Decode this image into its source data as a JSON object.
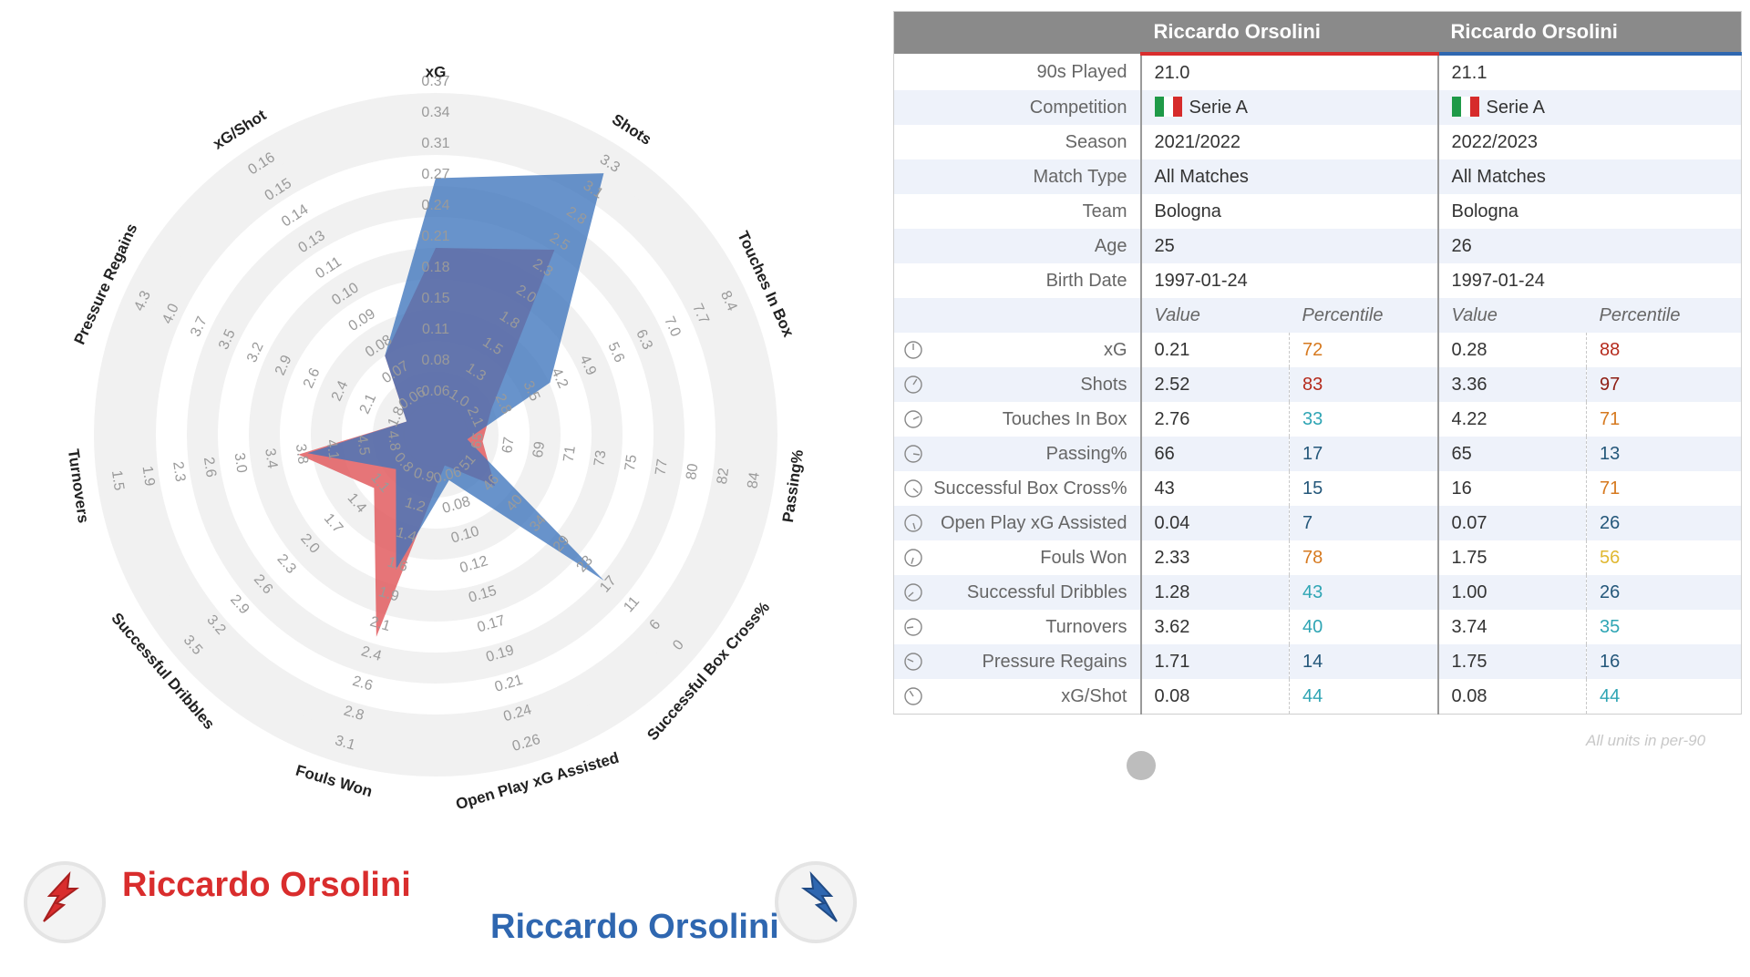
{
  "chart_data": {
    "type": "radar",
    "axes": [
      {
        "name": "xG",
        "ticks": [
          "0.06",
          "0.08",
          "0.11",
          "0.15",
          "0.18",
          "0.21",
          "0.24",
          "0.27",
          "0.31",
          "0.34",
          "0.37"
        ]
      },
      {
        "name": "Shots",
        "ticks": [
          "1.0",
          "1.3",
          "1.5",
          "1.8",
          "2.0",
          "2.3",
          "2.5",
          "2.8",
          "3.1",
          "3.3"
        ]
      },
      {
        "name": "Touches In Box",
        "ticks": [
          "2.1",
          "2.8",
          "3.5",
          "4.2",
          "4.9",
          "5.6",
          "6.3",
          "7.0",
          "7.7",
          "8.4"
        ]
      },
      {
        "name": "Passing%",
        "ticks": [
          "65",
          "67",
          "69",
          "71",
          "73",
          "75",
          "77",
          "80",
          "82",
          "84"
        ]
      },
      {
        "name": "Successful Box Cross%",
        "ticks": [
          "51",
          "46",
          "40",
          "34",
          "29",
          "23",
          "17",
          "11",
          "6",
          "0"
        ]
      },
      {
        "name": "Open Play xG Assisted",
        "ticks": [
          "0.06",
          "0.08",
          "0.10",
          "0.12",
          "0.15",
          "0.17",
          "0.19",
          "0.21",
          "0.24",
          "0.26"
        ]
      },
      {
        "name": "Fouls Won",
        "ticks": [
          "0.9",
          "1.2",
          "1.4",
          "1.6",
          "1.9",
          "2.1",
          "2.4",
          "2.6",
          "2.8",
          "3.1"
        ]
      },
      {
        "name": "Successful Dribbles",
        "ticks": [
          "0.8",
          "1.1",
          "1.4",
          "1.7",
          "2.0",
          "2.3",
          "2.6",
          "2.9",
          "3.2",
          "3.5"
        ]
      },
      {
        "name": "Turnovers",
        "ticks": [
          "4.8",
          "4.5",
          "4.1",
          "3.8",
          "3.4",
          "3.0",
          "2.6",
          "2.3",
          "1.9",
          "1.5"
        ]
      },
      {
        "name": "Pressure Regains",
        "ticks": [
          "1.8",
          "2.1",
          "2.4",
          "2.6",
          "2.9",
          "3.2",
          "3.5",
          "3.7",
          "4.0",
          "4.3"
        ]
      },
      {
        "name": "xG/Shot",
        "ticks": [
          "0.06",
          "0.07",
          "0.08",
          "0.09",
          "0.10",
          "0.11",
          "0.13",
          "0.14",
          "0.15",
          "0.16"
        ]
      }
    ],
    "series": [
      {
        "name": "Riccardo Orsolini",
        "season": "2021/2022",
        "color": "#e0575a",
        "values": [
          0.21,
          2.52,
          2.76,
          66,
          43,
          0.04,
          2.33,
          1.28,
          3.62,
          1.71,
          0.08
        ]
      },
      {
        "name": "Riccardo Orsolini",
        "season": "2022/2023",
        "color": "#3d74bd",
        "values": [
          0.28,
          3.36,
          4.22,
          65,
          16,
          0.07,
          1.75,
          1.0,
          3.74,
          1.75,
          0.08
        ]
      }
    ]
  },
  "legend": {
    "player1": {
      "name": "Riccardo Orsolini",
      "color": "#d92d2d"
    },
    "player2": {
      "name": "Riccardo Orsolini",
      "color": "#2f67b0"
    }
  },
  "table": {
    "header": {
      "player1": "Riccardo Orsolini",
      "player2": "Riccardo Orsolini"
    },
    "info_rows": [
      {
        "label": "90s Played",
        "p1": "21.0",
        "p2": "21.1"
      },
      {
        "label": "Competition",
        "p1": "Serie A",
        "p2": "Serie A",
        "flag": true
      },
      {
        "label": "Season",
        "p1": "2021/2022",
        "p2": "2022/2023"
      },
      {
        "label": "Match Type",
        "p1": "All Matches",
        "p2": "All Matches"
      },
      {
        "label": "Team",
        "p1": "Bologna",
        "p2": "Bologna"
      },
      {
        "label": "Age",
        "p1": "25",
        "p2": "26"
      },
      {
        "label": "Birth Date",
        "p1": "1997-01-24",
        "p2": "1997-01-24"
      }
    ],
    "subheader": {
      "value": "Value",
      "percentile": "Percentile"
    },
    "metrics": [
      {
        "label": "xG",
        "p1_value": "0.21",
        "p1_pct": "72",
        "p1_color": "#d6791f",
        "p2_value": "0.28",
        "p2_pct": "88",
        "p2_color": "#b52a1c"
      },
      {
        "label": "Shots",
        "p1_value": "2.52",
        "p1_pct": "83",
        "p1_color": "#b52a1c",
        "p2_value": "3.36",
        "p2_pct": "97",
        "p2_color": "#8e1d12"
      },
      {
        "label": "Touches In Box",
        "p1_value": "2.76",
        "p1_pct": "33",
        "p1_color": "#2fa5b4",
        "p2_value": "4.22",
        "p2_pct": "71",
        "p2_color": "#d6791f"
      },
      {
        "label": "Passing%",
        "p1_value": "66",
        "p1_pct": "17",
        "p1_color": "#24577a",
        "p2_value": "65",
        "p2_pct": "13",
        "p2_color": "#24577a"
      },
      {
        "label": "Successful Box Cross%",
        "p1_value": "43",
        "p1_pct": "15",
        "p1_color": "#24577a",
        "p2_value": "16",
        "p2_pct": "71",
        "p2_color": "#d6791f"
      },
      {
        "label": "Open Play xG Assisted",
        "p1_value": "0.04",
        "p1_pct": "7",
        "p1_color": "#24577a",
        "p2_value": "0.07",
        "p2_pct": "26",
        "p2_color": "#24577a"
      },
      {
        "label": "Fouls Won",
        "p1_value": "2.33",
        "p1_pct": "78",
        "p1_color": "#d6791f",
        "p2_value": "1.75",
        "p2_pct": "56",
        "p2_color": "#e0b832"
      },
      {
        "label": "Successful Dribbles",
        "p1_value": "1.28",
        "p1_pct": "43",
        "p1_color": "#2fa5b4",
        "p2_value": "1.00",
        "p2_pct": "26",
        "p2_color": "#24577a"
      },
      {
        "label": "Turnovers",
        "p1_value": "3.62",
        "p1_pct": "40",
        "p1_color": "#2fa5b4",
        "p2_value": "3.74",
        "p2_pct": "35",
        "p2_color": "#2fa5b4"
      },
      {
        "label": "Pressure Regains",
        "p1_value": "1.71",
        "p1_pct": "14",
        "p1_color": "#24577a",
        "p2_value": "1.75",
        "p2_pct": "16",
        "p2_color": "#24577a"
      },
      {
        "label": "xG/Shot",
        "p1_value": "0.08",
        "p1_pct": "44",
        "p1_color": "#2fa5b4",
        "p2_value": "0.08",
        "p2_pct": "44",
        "p2_color": "#2fa5b4"
      }
    ],
    "note": "All units in per-90"
  }
}
